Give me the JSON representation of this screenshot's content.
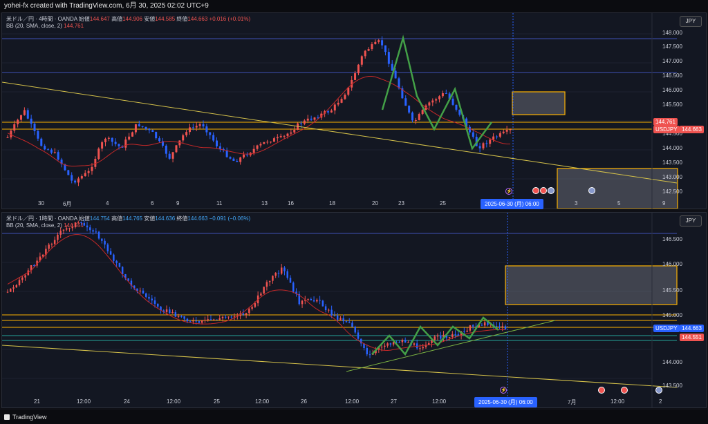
{
  "header": {
    "title": "yohei-fx created with TradingView.com, 6月 30, 2025 02:02 UTC+9"
  },
  "pane1": {
    "symbol": "米ドル／円 · 4時間 · OANDA",
    "open_label": "始値",
    "open": "144.647",
    "high_label": "高値",
    "high": "144.906",
    "low_label": "安値",
    "low": "144.585",
    "close_label": "終値",
    "close": "144.663",
    "change": "+0.016 (+0.01%)",
    "bb_label": "BB (20, SMA, close, 2)",
    "bb_value": "144.761",
    "currency": "JPY",
    "price_ticks": [
      "148.000",
      "147.500",
      "147.000",
      "146.500",
      "146.000",
      "145.500",
      "144.500",
      "144.000",
      "143.500",
      "143.000",
      "142.500"
    ],
    "time_ticks": [
      "30",
      "6月",
      "4",
      "6",
      "9",
      "11",
      "13",
      "16",
      "18",
      "20",
      "23",
      "25",
      "3",
      "5",
      "9"
    ],
    "tag_bb": "144.761",
    "tag_symbol": "USDJPY",
    "tag_price": "144.663",
    "crosshair_time": "2025-06-30 (月)   06:00"
  },
  "pane2": {
    "symbol": "米ドル／円 · 1時間 · OANDA",
    "open_label": "始値",
    "open": "144.754",
    "high_label": "高値",
    "high": "144.765",
    "low_label": "安値",
    "low": "144.636",
    "close_label": "終値",
    "close": "144.663",
    "change": "−0.091 (−0.06%)",
    "bb_label": "BB (20, SMA, close, 2)",
    "bb_value": "144.551",
    "currency": "JPY",
    "price_ticks": [
      "146.500",
      "146.000",
      "145.500",
      "145.000",
      "144.000",
      "143.500"
    ],
    "time_ticks": [
      "21",
      "12:00",
      "24",
      "12:00",
      "25",
      "12:00",
      "26",
      "12:00",
      "27",
      "12:00",
      "7月",
      "12:00",
      "2"
    ],
    "tag_symbol": "USDJPY",
    "tag_price": "144.663",
    "tag_bb": "144.551",
    "crosshair_time": "2025-06-30 (月)   06:00"
  },
  "footer": {
    "brand": "TradingView"
  },
  "colors": {
    "up": "#ef5350",
    "down": "#2962ff",
    "bb": "#c62828",
    "trend": "#d4c14a",
    "hline": "#ffb300",
    "box": "#ffb300",
    "pattern": "#43a047"
  }
}
